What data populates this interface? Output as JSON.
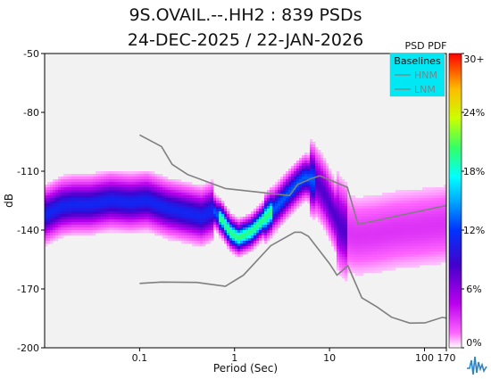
{
  "chart_data": {
    "type": "heatmap",
    "title": "9S.OVAIL.--.HH2 : 839 PSDs",
    "subtitle": "24-DEC-2025 / 22-JAN-2026",
    "xlabel": "Period (Sec)",
    "ylabel": "dB",
    "x_scale": "log",
    "xlim": [
      0.01,
      170
    ],
    "ylim": [
      -200,
      -50
    ],
    "x_ticks": [
      {
        "value": 0.1,
        "label": "0.1"
      },
      {
        "value": 1,
        "label": "1"
      },
      {
        "value": 10,
        "label": "10"
      },
      {
        "value": 100,
        "label": "100"
      },
      {
        "value": 170,
        "label": "170"
      }
    ],
    "y_ticks": [
      {
        "value": -50,
        "label": "-50"
      },
      {
        "value": -80,
        "label": "-80"
      },
      {
        "value": -110,
        "label": "-110"
      },
      {
        "value": -140,
        "label": "-140"
      },
      {
        "value": -170,
        "label": "-170"
      },
      {
        "value": -200,
        "label": "-200"
      }
    ],
    "colorbar": {
      "title": "PSD PDF",
      "range": [
        0,
        30
      ],
      "ticks": [
        {
          "value": 30,
          "label": "30+"
        },
        {
          "value": 24,
          "label": "24%"
        },
        {
          "value": 18,
          "label": "18%"
        },
        {
          "value": 12,
          "label": "12%"
        },
        {
          "value": 6,
          "label": "6%"
        },
        {
          "value": 0,
          "label": "0%"
        }
      ]
    },
    "legend": {
      "title": "Baselines",
      "placement": "top-right",
      "entries": [
        "HNM",
        "LNM"
      ]
    },
    "series": [
      {
        "name": "HNM",
        "x": [
          0.1,
          0.17,
          0.22,
          0.32,
          0.8,
          3.8,
          4.6,
          6.3,
          7.9,
          15.4,
          20,
          176
        ],
        "y": [
          -91.5,
          -97.4,
          -106.5,
          -111.7,
          -118.8,
          -122.4,
          -116.8,
          -113.9,
          -112.3,
          -118.2,
          -137.1,
          -127.3
        ]
      },
      {
        "name": "LNM",
        "x": [
          0.1,
          0.17,
          0.4,
          0.8,
          1.24,
          2.4,
          4.3,
          5,
          6,
          10,
          12,
          15.6,
          21.9,
          31.6,
          45,
          70,
          101,
          154,
          179
        ],
        "y": [
          -167.2,
          -166.5,
          -166.7,
          -168.7,
          -163,
          -148,
          -141.1,
          -141.1,
          -143.2,
          -157.1,
          -163,
          -158.2,
          -174.5,
          -179.2,
          -184.4,
          -187.4,
          -187.3,
          -184.5,
          -185
        ]
      }
    ],
    "pdf_mode": {
      "x": [
        0.0105,
        0.015,
        0.02,
        0.03,
        0.05,
        0.08,
        0.12,
        0.2,
        0.3,
        0.45,
        0.6,
        0.75,
        0.9,
        1.1,
        1.5,
        2,
        2.8,
        3.6,
        4.5,
        5.5,
        6.5,
        7.5,
        9,
        11,
        13,
        16,
        20,
        30,
        50,
        80,
        120,
        170
      ],
      "y": [
        -132,
        -128,
        -127,
        -127,
        -125,
        -126,
        -125,
        -129,
        -131,
        -133,
        -130,
        -135,
        -141,
        -144,
        -141,
        -135,
        -128,
        -122,
        -117,
        -113,
        -114,
        -116,
        -122,
        -131,
        -138,
        -142,
        -143,
        -142,
        -140,
        -139,
        -138,
        -137
      ]
    }
  }
}
